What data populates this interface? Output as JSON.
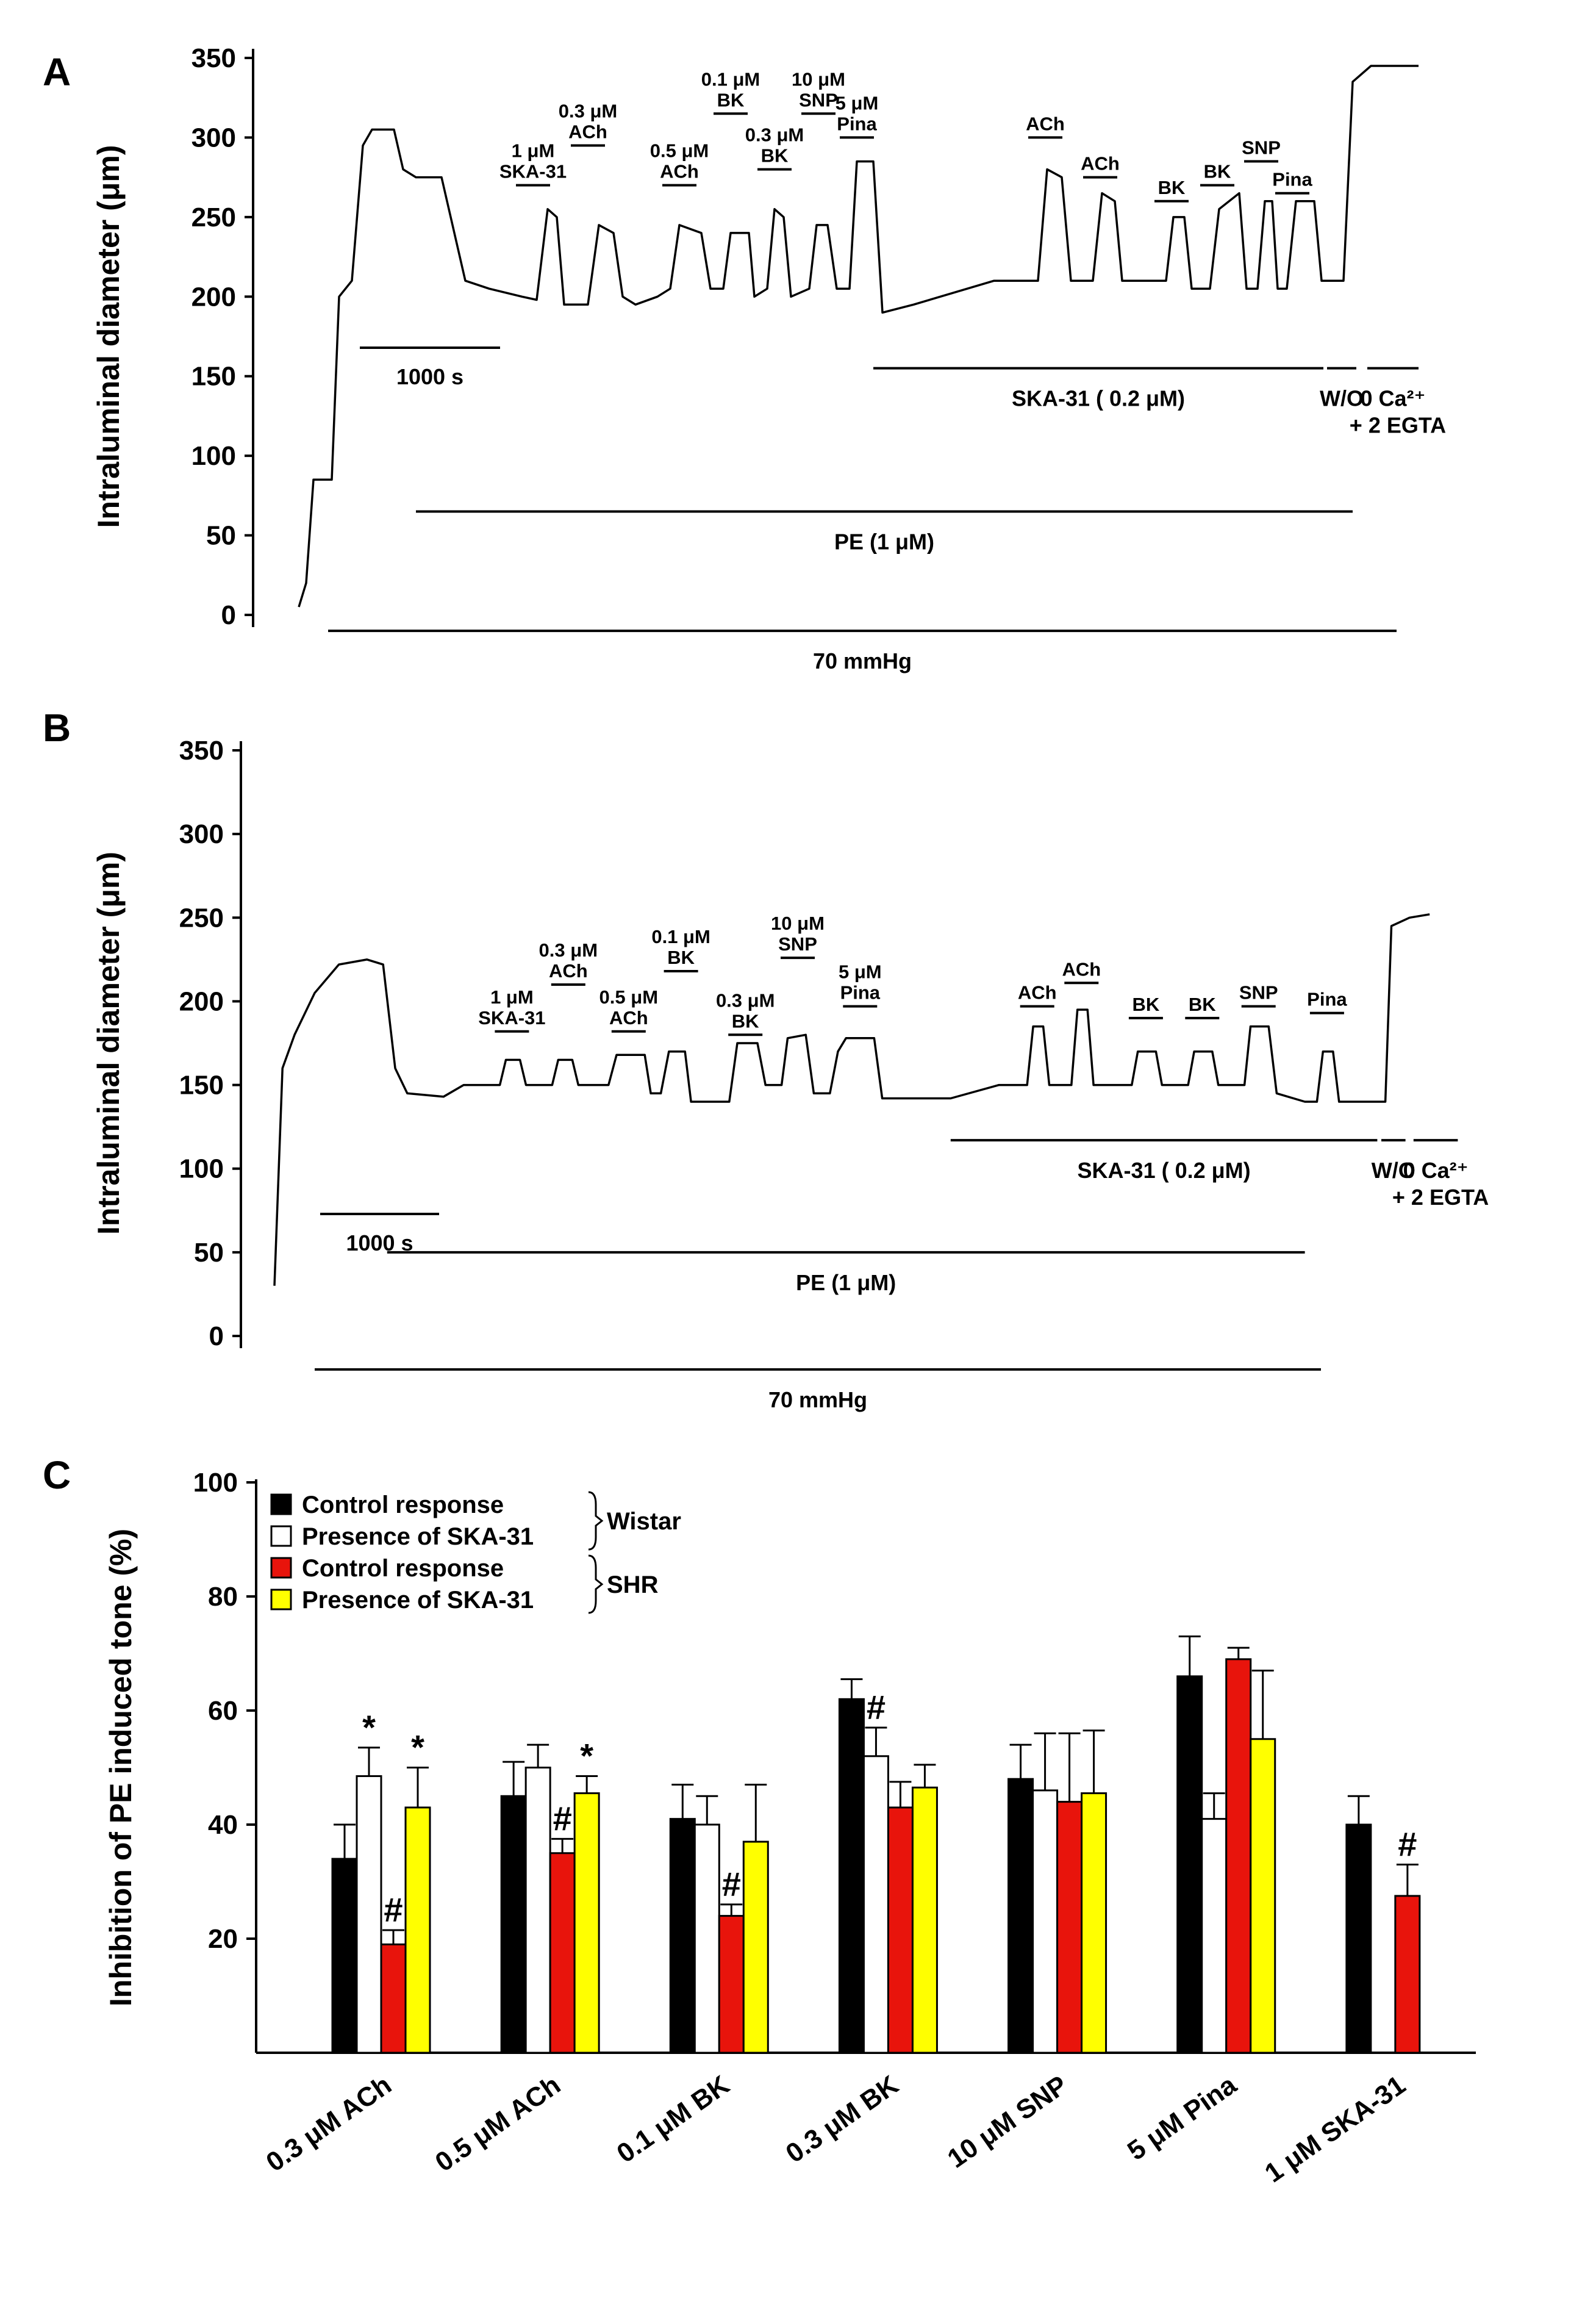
{
  "panels": [
    {
      "label": "A",
      "ylabel": "Intraluminal diameter (μm)",
      "yticks": [
        0,
        50,
        100,
        150,
        200,
        250,
        300,
        350
      ],
      "ylim": [
        0,
        350
      ],
      "trace": [
        [
          0,
          5
        ],
        [
          20,
          20
        ],
        [
          40,
          85
        ],
        [
          90,
          85
        ],
        [
          110,
          200
        ],
        [
          145,
          210
        ],
        [
          175,
          295
        ],
        [
          200,
          305
        ],
        [
          260,
          305
        ],
        [
          285,
          280
        ],
        [
          320,
          275
        ],
        [
          390,
          275
        ],
        [
          420,
          245
        ],
        [
          455,
          210
        ],
        [
          520,
          205
        ],
        [
          610,
          200
        ],
        [
          650,
          198
        ],
        [
          680,
          255
        ],
        [
          705,
          250
        ],
        [
          725,
          195
        ],
        [
          790,
          195
        ],
        [
          820,
          245
        ],
        [
          860,
          240
        ],
        [
          885,
          200
        ],
        [
          920,
          195
        ],
        [
          980,
          200
        ],
        [
          1015,
          205
        ],
        [
          1040,
          245
        ],
        [
          1100,
          240
        ],
        [
          1125,
          205
        ],
        [
          1160,
          205
        ],
        [
          1180,
          240
        ],
        [
          1230,
          240
        ],
        [
          1245,
          200
        ],
        [
          1280,
          205
        ],
        [
          1300,
          255
        ],
        [
          1325,
          250
        ],
        [
          1345,
          200
        ],
        [
          1395,
          205
        ],
        [
          1415,
          245
        ],
        [
          1445,
          245
        ],
        [
          1470,
          205
        ],
        [
          1505,
          205
        ],
        [
          1525,
          285
        ],
        [
          1570,
          285
        ],
        [
          1595,
          190
        ],
        [
          1680,
          195
        ],
        [
          1900,
          210
        ],
        [
          2020,
          210
        ],
        [
          2045,
          280
        ],
        [
          2085,
          275
        ],
        [
          2110,
          210
        ],
        [
          2170,
          210
        ],
        [
          2195,
          265
        ],
        [
          2230,
          260
        ],
        [
          2250,
          210
        ],
        [
          2370,
          210
        ],
        [
          2390,
          250
        ],
        [
          2420,
          250
        ],
        [
          2440,
          205
        ],
        [
          2490,
          205
        ],
        [
          2515,
          255
        ],
        [
          2570,
          265
        ],
        [
          2590,
          205
        ],
        [
          2620,
          205
        ],
        [
          2640,
          260
        ],
        [
          2660,
          260
        ],
        [
          2675,
          205
        ],
        [
          2700,
          205
        ],
        [
          2725,
          260
        ],
        [
          2775,
          260
        ],
        [
          2795,
          210
        ],
        [
          2855,
          210
        ],
        [
          2880,
          335
        ],
        [
          2930,
          345
        ],
        [
          3060,
          345
        ]
      ],
      "scale_bar": "1000 s",
      "annotations": [
        {
          "lines": [
            "1 μM",
            "SKA-31"
          ],
          "t": 640,
          "y": 270
        },
        {
          "lines": [
            "0.3 μM",
            "ACh"
          ],
          "t": 790,
          "y": 295
        },
        {
          "lines": [
            "0.5 μM",
            "ACh"
          ],
          "t": 1040,
          "y": 270
        },
        {
          "lines": [
            "0.1 μM",
            "BK"
          ],
          "t": 1180,
          "y": 315
        },
        {
          "lines": [
            "0.3 μM",
            "BK"
          ],
          "t": 1300,
          "y": 280
        },
        {
          "lines": [
            "10 μM",
            "SNP"
          ],
          "t": 1420,
          "y": 315
        },
        {
          "lines": [
            "5 μM",
            "Pina"
          ],
          "t": 1525,
          "y": 300
        },
        {
          "lines": [
            "ACh"
          ],
          "t": 2040,
          "y": 300
        },
        {
          "lines": [
            "ACh"
          ],
          "t": 2190,
          "y": 275
        },
        {
          "lines": [
            "BK"
          ],
          "t": 2385,
          "y": 260
        },
        {
          "lines": [
            "BK"
          ],
          "t": 2510,
          "y": 270
        },
        {
          "lines": [
            "SNP"
          ],
          "t": 2630,
          "y": 285
        },
        {
          "lines": [
            "Pina"
          ],
          "t": 2715,
          "y": 265
        }
      ],
      "bars": [
        {
          "label": "SKA-31 ( 0.2 μM)",
          "t0": 1570,
          "t1": 2800,
          "y": 155
        },
        {
          "label": "W/O",
          "t0": 2810,
          "t1": 2890,
          "y": 155
        },
        {
          "label": "0 Ca²⁺",
          "label2": "+ 2 EGTA",
          "t0": 2920,
          "t1": 3060,
          "y": 155
        },
        {
          "label": "PE (1 μM)",
          "t0": 320,
          "t1": 2880,
          "y": 65
        },
        {
          "label": "70 mmHg",
          "t0": 80,
          "t1": 3000,
          "y": -10
        }
      ]
    },
    {
      "label": "B",
      "ylabel": "Intraluminal diameter (μm)",
      "yticks": [
        0,
        50,
        100,
        150,
        200,
        250,
        300,
        350
      ],
      "ylim": [
        0,
        350
      ],
      "trace": [
        [
          0,
          30
        ],
        [
          20,
          160
        ],
        [
          50,
          180
        ],
        [
          100,
          205
        ],
        [
          160,
          222
        ],
        [
          230,
          225
        ],
        [
          270,
          222
        ],
        [
          300,
          160
        ],
        [
          330,
          145
        ],
        [
          420,
          143
        ],
        [
          470,
          150
        ],
        [
          560,
          150
        ],
        [
          575,
          165
        ],
        [
          610,
          165
        ],
        [
          625,
          150
        ],
        [
          690,
          150
        ],
        [
          705,
          165
        ],
        [
          740,
          165
        ],
        [
          755,
          150
        ],
        [
          830,
          150
        ],
        [
          850,
          168
        ],
        [
          920,
          168
        ],
        [
          935,
          145
        ],
        [
          960,
          145
        ],
        [
          980,
          170
        ],
        [
          1020,
          170
        ],
        [
          1035,
          140
        ],
        [
          1130,
          140
        ],
        [
          1150,
          175
        ],
        [
          1200,
          175
        ],
        [
          1220,
          150
        ],
        [
          1260,
          150
        ],
        [
          1275,
          178
        ],
        [
          1320,
          180
        ],
        [
          1340,
          145
        ],
        [
          1380,
          145
        ],
        [
          1400,
          170
        ],
        [
          1420,
          178
        ],
        [
          1490,
          178
        ],
        [
          1510,
          142
        ],
        [
          1680,
          142
        ],
        [
          1800,
          150
        ],
        [
          1870,
          150
        ],
        [
          1885,
          185
        ],
        [
          1910,
          185
        ],
        [
          1925,
          150
        ],
        [
          1980,
          150
        ],
        [
          1995,
          195
        ],
        [
          2020,
          195
        ],
        [
          2035,
          150
        ],
        [
          2130,
          150
        ],
        [
          2145,
          170
        ],
        [
          2190,
          170
        ],
        [
          2205,
          150
        ],
        [
          2270,
          150
        ],
        [
          2285,
          170
        ],
        [
          2330,
          170
        ],
        [
          2345,
          150
        ],
        [
          2410,
          150
        ],
        [
          2425,
          185
        ],
        [
          2470,
          185
        ],
        [
          2490,
          145
        ],
        [
          2560,
          140
        ],
        [
          2590,
          140
        ],
        [
          2605,
          170
        ],
        [
          2630,
          170
        ],
        [
          2645,
          140
        ],
        [
          2700,
          140
        ],
        [
          2760,
          140
        ],
        [
          2775,
          245
        ],
        [
          2820,
          250
        ],
        [
          2870,
          252
        ]
      ],
      "scale_bar": "1000 s",
      "annotations": [
        {
          "lines": [
            "1 μM",
            "SKA-31"
          ],
          "t": 590,
          "y": 182
        },
        {
          "lines": [
            "0.3 μM",
            "ACh"
          ],
          "t": 730,
          "y": 210
        },
        {
          "lines": [
            "0.5 μM",
            "ACh"
          ],
          "t": 880,
          "y": 182
        },
        {
          "lines": [
            "0.1 μM",
            "BK"
          ],
          "t": 1010,
          "y": 218
        },
        {
          "lines": [
            "0.3 μM",
            "BK"
          ],
          "t": 1170,
          "y": 180
        },
        {
          "lines": [
            "10 μM",
            "SNP"
          ],
          "t": 1300,
          "y": 226
        },
        {
          "lines": [
            "5 μM",
            "Pina"
          ],
          "t": 1455,
          "y": 197
        },
        {
          "lines": [
            "ACh"
          ],
          "t": 1895,
          "y": 197
        },
        {
          "lines": [
            "ACh"
          ],
          "t": 2005,
          "y": 211
        },
        {
          "lines": [
            "BK"
          ],
          "t": 2165,
          "y": 190
        },
        {
          "lines": [
            "BK"
          ],
          "t": 2305,
          "y": 190
        },
        {
          "lines": [
            "SNP"
          ],
          "t": 2445,
          "y": 197
        },
        {
          "lines": [
            "Pina"
          ],
          "t": 2615,
          "y": 193
        }
      ],
      "bars": [
        {
          "label": "SKA-31 ( 0.2 μM)",
          "t0": 1680,
          "t1": 2740,
          "y": 117
        },
        {
          "label": "W/O",
          "t0": 2750,
          "t1": 2810,
          "y": 117
        },
        {
          "label": "0 Ca²⁺",
          "label2": "+ 2 EGTA",
          "t0": 2830,
          "t1": 2940,
          "y": 117
        },
        {
          "label": "PE (1 μM)",
          "t0": 280,
          "t1": 2560,
          "y": 50
        },
        {
          "label": "70 mmHg",
          "t0": 100,
          "t1": 2600,
          "y": -20
        }
      ]
    }
  ],
  "chart_data": {
    "type": "bar",
    "panel_label": "C",
    "title": "",
    "xlabel": "",
    "ylabel": "Inhibition of PE induced tone (%)",
    "ylim": [
      0,
      100
    ],
    "yticks": [
      20,
      40,
      60,
      80,
      100
    ],
    "legend": {
      "position": "top-left",
      "groups": [
        {
          "label": "Wistar",
          "entries": [
            0,
            1
          ]
        },
        {
          "label": "SHR",
          "entries": [
            2,
            3
          ]
        }
      ]
    },
    "categories": [
      "0.3 μM ACh",
      "0.5 μM ACh",
      "0.1 μM BK",
      "0.3 μM BK",
      "10 μM SNP",
      "5 μM Pina",
      "1 μM SKA-31"
    ],
    "series": [
      {
        "name": "Control response",
        "color": "#000000",
        "values": [
          34,
          45,
          41,
          62,
          48,
          66,
          40
        ],
        "errors": [
          6,
          6,
          6,
          3.5,
          6,
          7,
          5
        ]
      },
      {
        "name": "Presence of SKA-31",
        "color": "#ffffff",
        "values": [
          48.5,
          50,
          40,
          52,
          46,
          41,
          null
        ],
        "errors": [
          5,
          4,
          5,
          5,
          10,
          4.5,
          null
        ]
      },
      {
        "name": "Control response",
        "color": "#e8140c",
        "values": [
          19,
          35,
          24,
          43,
          44,
          69,
          27.5
        ],
        "errors": [
          2.5,
          2.5,
          2,
          4.5,
          12,
          2,
          5.5
        ]
      },
      {
        "name": "Presence of SKA-31",
        "color": "#ffff00",
        "values": [
          43,
          45.5,
          37,
          46.5,
          45.5,
          55,
          null
        ],
        "errors": [
          7,
          3,
          10,
          4,
          11,
          12,
          null
        ]
      }
    ],
    "significance": [
      {
        "category": 0,
        "series": 1,
        "mark": "*"
      },
      {
        "category": 0,
        "series": 2,
        "mark": "#"
      },
      {
        "category": 0,
        "series": 3,
        "mark": "*"
      },
      {
        "category": 1,
        "series": 2,
        "mark": "#"
      },
      {
        "category": 1,
        "series": 3,
        "mark": "*"
      },
      {
        "category": 2,
        "series": 2,
        "mark": "#"
      },
      {
        "category": 3,
        "series": 1,
        "mark": "#"
      },
      {
        "category": 6,
        "series": 2,
        "mark": "#"
      }
    ]
  }
}
